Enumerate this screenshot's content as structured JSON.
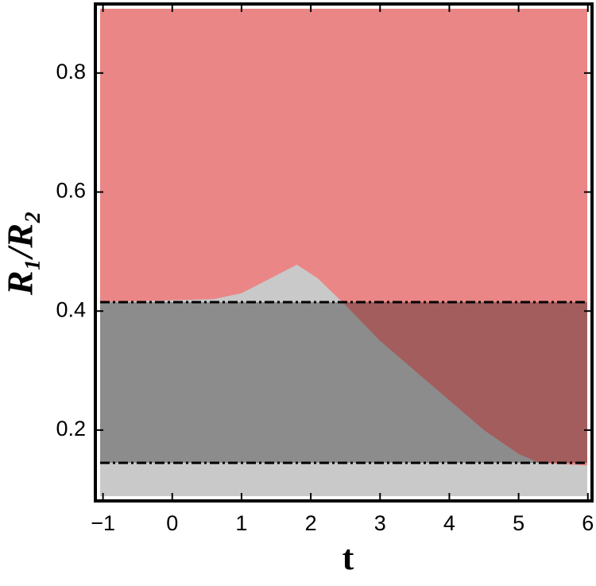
{
  "chart_data": {
    "type": "region",
    "xlabel": "t",
    "ylabel": "R₁/R₂",
    "xlim": [
      -1.11,
      6.06
    ],
    "ylim": [
      0.081,
      0.916
    ],
    "xticks": [
      {
        "value": -1,
        "label": "−1"
      },
      0,
      1,
      2,
      3,
      4,
      5,
      6
    ],
    "yticks": [
      0.2,
      0.4,
      0.6,
      0.8
    ],
    "boundary": {
      "x": [
        -1.11,
        0.6,
        1.0,
        1.5,
        1.8,
        2.1,
        2.5,
        3.0,
        3.5,
        4.0,
        4.5,
        5.0,
        5.3,
        6.06
      ],
      "y": [
        0.415,
        0.42,
        0.43,
        0.46,
        0.478,
        0.455,
        0.41,
        0.35,
        0.3,
        0.25,
        0.2,
        0.16,
        0.145,
        0.14
      ]
    },
    "above_color": "#ea8686",
    "below_color": "#c9c9c9",
    "hlines": [
      0.415,
      0.145
    ]
  }
}
